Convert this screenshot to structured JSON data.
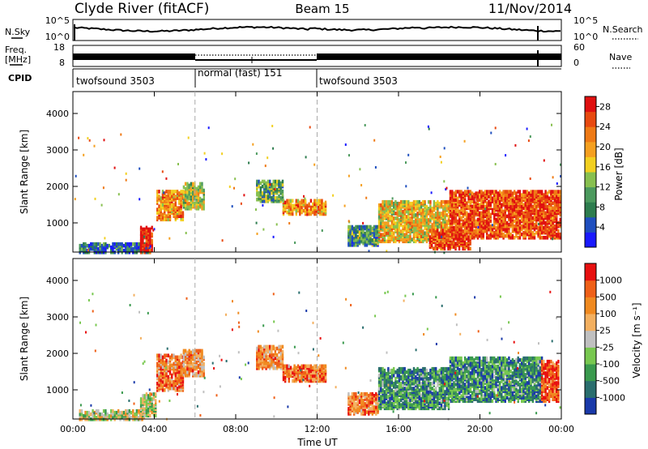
{
  "header": {
    "station": "Clyde River (fitACF)",
    "beam": "Beam 15",
    "date": "11/Nov/2014"
  },
  "top_panels": {
    "nsky_label": "N.Sky",
    "nsky_ticks": [
      "10^5",
      "10^0"
    ],
    "nsearch_label": "N.Search",
    "nsearch_ticks": [
      "10^5",
      "10^0"
    ],
    "freq_label": [
      "Freq.",
      "[MHz]"
    ],
    "freq_ticks": [
      "18",
      "8"
    ],
    "nave_label": "Nave",
    "nave_ticks": [
      "60",
      "0"
    ],
    "cpid_label": "CPID",
    "cpid_segments": [
      {
        "label": "twofsound 3503",
        "start_hour": 0,
        "end_hour": 6
      },
      {
        "label": "normal (fast) 151",
        "start_hour": 6,
        "end_hour": 12
      },
      {
        "label": "twofsound 3503",
        "start_hour": 12,
        "end_hour": 24
      }
    ]
  },
  "colors": {
    "power_bar": [
      "#1a1aff",
      "#1f4fbf",
      "#2e7d4f",
      "#4c9a5e",
      "#88c050",
      "#f2d020",
      "#f5a020",
      "#ef7a15",
      "#e84a10",
      "#e01010"
    ],
    "velocity_bar": [
      "#e81010",
      "#ef6018",
      "#f08a20",
      "#f3b060",
      "#c0c0c0",
      "#78c850",
      "#3a9a4e",
      "#2a6e6e",
      "#1a3aaa"
    ]
  },
  "chart_data": [
    {
      "type": "heatmap",
      "name": "power",
      "xlabel": "",
      "ylabel": "Slant Range [km]",
      "x_ticks": [
        "00:00",
        "04:00",
        "08:00",
        "12:00",
        "16:00",
        "20:00",
        "00:00"
      ],
      "y_ticks": [
        "1000",
        "2000",
        "3000",
        "4000"
      ],
      "xlim_hours": [
        0,
        24
      ],
      "ylim_km": [
        200,
        4600
      ],
      "colorbar": {
        "label": "Power [dB]",
        "ticks": [
          "4",
          "8",
          "12",
          "16",
          "20",
          "24",
          "28"
        ],
        "range": [
          0,
          30
        ]
      },
      "blobs": [
        {
          "t0": 0.3,
          "t1": 3.8,
          "r0": 200,
          "r1": 450,
          "level": 0.2
        },
        {
          "t0": 3.3,
          "t1": 3.9,
          "r0": 200,
          "r1": 900,
          "level": 0.95
        },
        {
          "t0": 4.1,
          "t1": 5.4,
          "r0": 1100,
          "r1": 1900,
          "level": 0.7
        },
        {
          "t0": 5.4,
          "t1": 6.4,
          "r0": 1400,
          "r1": 2100,
          "level": 0.5
        },
        {
          "t0": 9.0,
          "t1": 10.3,
          "r0": 1600,
          "r1": 2150,
          "level": 0.35
        },
        {
          "t0": 10.3,
          "t1": 12.4,
          "r0": 1250,
          "r1": 1650,
          "level": 0.7
        },
        {
          "t0": 13.5,
          "t1": 15.0,
          "r0": 400,
          "r1": 900,
          "level": 0.3
        },
        {
          "t0": 15.0,
          "t1": 18.5,
          "r0": 500,
          "r1": 1600,
          "level": 0.6
        },
        {
          "t0": 17.5,
          "t1": 19.5,
          "r0": 300,
          "r1": 800,
          "level": 0.85
        },
        {
          "t0": 18.5,
          "t1": 23.9,
          "r0": 600,
          "r1": 1900,
          "level": 0.85
        }
      ]
    },
    {
      "type": "heatmap",
      "name": "velocity",
      "xlabel": "Time UT",
      "ylabel": "Slant Range [km]",
      "x_ticks": [
        "00:00",
        "04:00",
        "08:00",
        "12:00",
        "16:00",
        "20:00",
        "00:00"
      ],
      "y_ticks": [
        "1000",
        "2000",
        "3000",
        "4000"
      ],
      "xlim_hours": [
        0,
        24
      ],
      "ylim_km": [
        200,
        4600
      ],
      "colorbar": {
        "label": "Velocity [m s⁻¹]",
        "ticks": [
          "1000",
          "500",
          "100",
          "25",
          "-25",
          "-100",
          "-500",
          "-1000"
        ],
        "range": [
          -1000,
          1000
        ]
      },
      "blobs": [
        {
          "t0": 0.3,
          "t1": 3.5,
          "r0": 200,
          "r1": 450,
          "level": 0.5
        },
        {
          "t0": 3.3,
          "t1": 4.1,
          "r0": 300,
          "r1": 900,
          "level": 0.45
        },
        {
          "t0": 4.1,
          "t1": 5.4,
          "r0": 1000,
          "r1": 1950,
          "level": 0.75
        },
        {
          "t0": 5.4,
          "t1": 6.4,
          "r0": 1400,
          "r1": 2100,
          "level": 0.7
        },
        {
          "t0": 9.0,
          "t1": 10.3,
          "r0": 1600,
          "r1": 2200,
          "level": 0.72
        },
        {
          "t0": 10.3,
          "t1": 12.4,
          "r0": 1250,
          "r1": 1700,
          "level": 0.78
        },
        {
          "t0": 13.5,
          "t1": 15.0,
          "r0": 350,
          "r1": 900,
          "level": 0.75
        },
        {
          "t0": 15.0,
          "t1": 18.5,
          "r0": 500,
          "r1": 1600,
          "level": 0.25
        },
        {
          "t0": 18.5,
          "t1": 23.0,
          "r0": 700,
          "r1": 1900,
          "level": 0.25
        },
        {
          "t0": 23.0,
          "t1": 23.9,
          "r0": 700,
          "r1": 1800,
          "level": 0.85
        }
      ]
    }
  ]
}
